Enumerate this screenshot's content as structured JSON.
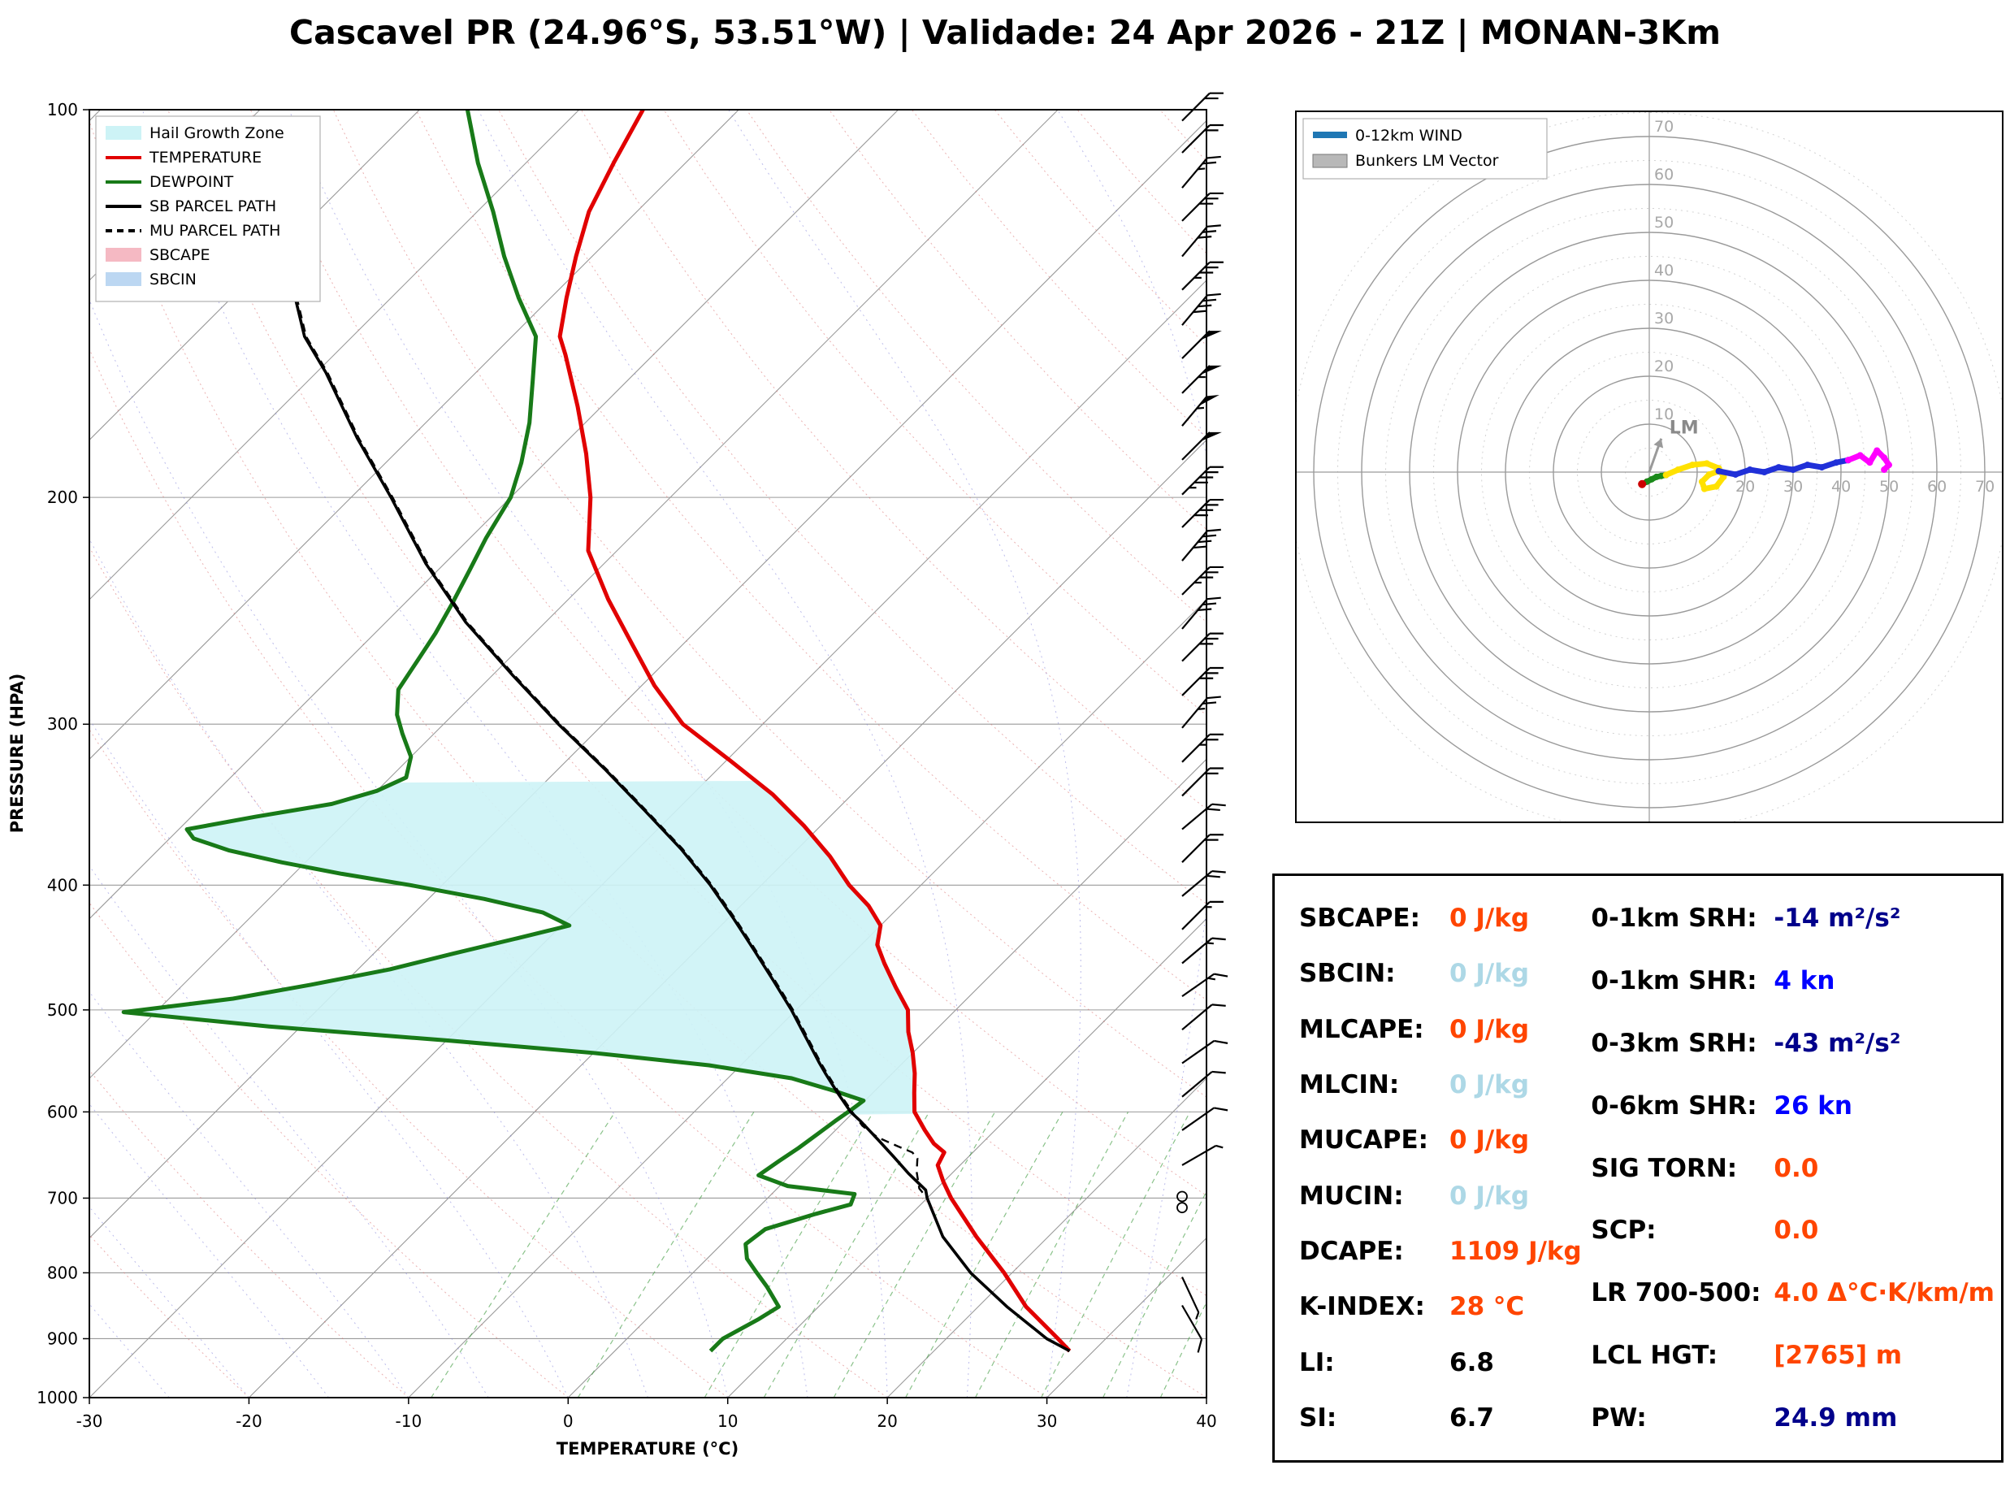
{
  "title": "Cascavel PR (24.96°S, 53.51°W) | Validade: 24 Apr 2026 - 21Z | MONAN-3Km",
  "chart_data": {
    "type": "skewt-sounding",
    "skewt": {
      "xlabel": "TEMPERATURE (°C)",
      "ylabel": "PRESSURE (HPA)",
      "x_ticks": [
        -30,
        -20,
        -10,
        0,
        10,
        20,
        30,
        40
      ],
      "p_ticks": [
        100,
        200,
        300,
        400,
        500,
        600,
        700,
        800,
        900,
        1000
      ],
      "t_range": [
        -30,
        40
      ],
      "p_range": [
        100,
        1000
      ],
      "isotherm_step": 10,
      "dry_adiabats_c": [
        -30,
        -20,
        -10,
        0,
        10,
        20,
        30,
        40,
        50,
        60,
        70,
        80,
        90,
        100,
        110,
        120,
        130,
        140,
        150,
        160,
        170
      ],
      "moist_adiabats_c": [
        -55,
        -50,
        -45,
        -40,
        -35,
        -30,
        -25,
        -20,
        -15,
        -10,
        -5,
        0,
        5,
        10,
        15,
        20,
        25,
        30,
        35,
        40,
        45
      ],
      "mixing_ratios_gkg": [
        2,
        4,
        7,
        9,
        12,
        16,
        21,
        27,
        34,
        42
      ],
      "legend": [
        {
          "label": "Hail Growth Zone",
          "type": "patch",
          "color": "#cdf3f6"
        },
        {
          "label": "TEMPERATURE",
          "type": "line",
          "color": "#e10000"
        },
        {
          "label": "DEWPOINT",
          "type": "line",
          "color": "#187a18"
        },
        {
          "label": "SB PARCEL PATH",
          "type": "line",
          "color": "#000000"
        },
        {
          "label": "MU PARCEL PATH",
          "type": "dashed",
          "color": "#000000"
        },
        {
          "label": "SBCAPE",
          "type": "patch",
          "color": "#f5b9c3"
        },
        {
          "label": "SBCIN",
          "type": "patch",
          "color": "#bcd7f2"
        }
      ]
    },
    "temperature": [
      [
        920,
        28.5
      ],
      [
        900,
        27
      ],
      [
        850,
        23
      ],
      [
        800,
        19.5
      ],
      [
        750,
        15.5
      ],
      [
        700,
        11.5
      ],
      [
        680,
        10
      ],
      [
        660,
        8.6
      ],
      [
        645,
        8.2
      ],
      [
        635,
        7
      ],
      [
        620,
        5.6
      ],
      [
        600,
        3.8
      ],
      [
        580,
        2.6
      ],
      [
        560,
        1.4
      ],
      [
        540,
        0
      ],
      [
        520,
        -1.6
      ],
      [
        500,
        -3
      ],
      [
        480,
        -5.2
      ],
      [
        460,
        -7.4
      ],
      [
        445,
        -9
      ],
      [
        430,
        -10
      ],
      [
        415,
        -12
      ],
      [
        400,
        -14.5
      ],
      [
        380,
        -17.5
      ],
      [
        360,
        -21
      ],
      [
        340,
        -25
      ],
      [
        320,
        -29.8
      ],
      [
        300,
        -35
      ],
      [
        280,
        -39.2
      ],
      [
        260,
        -43.2
      ],
      [
        240,
        -47.5
      ],
      [
        220,
        -51.8
      ],
      [
        200,
        -55
      ],
      [
        185,
        -58
      ],
      [
        170,
        -61.5
      ],
      [
        155,
        -65.5
      ],
      [
        150,
        -67
      ],
      [
        140,
        -69
      ],
      [
        130,
        -71
      ],
      [
        120,
        -73
      ],
      [
        110,
        -74.5
      ],
      [
        100,
        -76
      ]
    ],
    "dewpoint": [
      [
        920,
        6
      ],
      [
        900,
        6
      ],
      [
        870,
        7
      ],
      [
        850,
        7.5
      ],
      [
        820,
        5.5
      ],
      [
        800,
        4
      ],
      [
        780,
        2.5
      ],
      [
        760,
        1.5
      ],
      [
        740,
        1.8
      ],
      [
        720,
        4
      ],
      [
        708,
        5.6
      ],
      [
        695,
        5.2
      ],
      [
        685,
        0.5
      ],
      [
        672,
        -2
      ],
      [
        655,
        -1.6
      ],
      [
        640,
        -1.2
      ],
      [
        625,
        -0.9
      ],
      [
        610,
        -0.6
      ],
      [
        598,
        -0.3
      ],
      [
        588,
        -0.1
      ],
      [
        578,
        -2.5
      ],
      [
        565,
        -6
      ],
      [
        552,
        -12
      ],
      [
        540,
        -20
      ],
      [
        528,
        -30
      ],
      [
        515,
        -42
      ],
      [
        502,
        -52
      ],
      [
        490,
        -46
      ],
      [
        478,
        -42
      ],
      [
        465,
        -38
      ],
      [
        452,
        -35
      ],
      [
        440,
        -32
      ],
      [
        430,
        -29.5
      ],
      [
        420,
        -32
      ],
      [
        410,
        -36.5
      ],
      [
        400,
        -42
      ],
      [
        392,
        -47
      ],
      [
        384,
        -51.5
      ],
      [
        376,
        -55.5
      ],
      [
        368,
        -58.5
      ],
      [
        362,
        -59.5
      ],
      [
        354,
        -56
      ],
      [
        346,
        -52
      ],
      [
        338,
        -50
      ],
      [
        330,
        -49
      ],
      [
        318,
        -50
      ],
      [
        305,
        -52
      ],
      [
        295,
        -53.5
      ],
      [
        282,
        -55
      ],
      [
        268,
        -55.6
      ],
      [
        255,
        -56.2
      ],
      [
        242,
        -57
      ],
      [
        228,
        -58
      ],
      [
        215,
        -59
      ],
      [
        200,
        -60
      ],
      [
        188,
        -61.5
      ],
      [
        175,
        -63.5
      ],
      [
        162,
        -66
      ],
      [
        150,
        -68.5
      ],
      [
        140,
        -72
      ],
      [
        130,
        -75.5
      ],
      [
        120,
        -79
      ],
      [
        110,
        -83
      ],
      [
        100,
        -87
      ]
    ],
    "sb_parcel": [
      [
        920,
        28.5
      ],
      [
        900,
        26.3
      ],
      [
        850,
        21.8
      ],
      [
        800,
        17.4
      ],
      [
        750,
        13.4
      ],
      [
        700,
        10
      ],
      [
        690,
        9.4
      ],
      [
        670,
        7.3
      ],
      [
        650,
        5.3
      ],
      [
        630,
        3.2
      ],
      [
        610,
        1
      ],
      [
        600,
        -0.2
      ],
      [
        580,
        -2.2
      ],
      [
        560,
        -4.2
      ],
      [
        550,
        -5.2
      ],
      [
        520,
        -8.2
      ],
      [
        500,
        -10.3
      ],
      [
        475,
        -13.2
      ],
      [
        450,
        -16.3
      ],
      [
        425,
        -19.6
      ],
      [
        400,
        -23.2
      ],
      [
        375,
        -27.3
      ],
      [
        350,
        -32
      ],
      [
        325,
        -37.1
      ],
      [
        300,
        -42.8
      ],
      [
        275,
        -48.7
      ],
      [
        250,
        -55
      ],
      [
        225,
        -61.2
      ],
      [
        200,
        -67.5
      ],
      [
        180,
        -73.3
      ],
      [
        160,
        -79.4
      ],
      [
        150,
        -83
      ],
      [
        140,
        -86
      ],
      [
        132,
        -88.5
      ]
    ],
    "mu_parcel": [
      [
        920,
        28.5
      ],
      [
        900,
        26.3
      ],
      [
        850,
        21.8
      ],
      [
        800,
        17.4
      ],
      [
        750,
        13.4
      ],
      [
        700,
        10
      ],
      [
        688,
        8.9
      ],
      [
        668,
        7.7
      ],
      [
        652,
        6.9
      ],
      [
        645,
        6.2
      ],
      [
        638,
        4.9
      ],
      [
        628,
        3.1
      ],
      [
        615,
        1.4
      ],
      [
        600,
        -0.1
      ],
      [
        580,
        -2.1
      ],
      [
        560,
        -4.1
      ],
      [
        550,
        -5.1
      ],
      [
        520,
        -8.1
      ],
      [
        500,
        -10.2
      ],
      [
        475,
        -13.1
      ],
      [
        450,
        -16.2
      ],
      [
        425,
        -19.5
      ],
      [
        400,
        -23.1
      ],
      [
        375,
        -27.2
      ],
      [
        350,
        -31.9
      ],
      [
        325,
        -37
      ],
      [
        300,
        -42.7
      ],
      [
        275,
        -48.6
      ],
      [
        250,
        -54.9
      ],
      [
        225,
        -61.1
      ],
      [
        200,
        -67.4
      ],
      [
        180,
        -73.2
      ],
      [
        160,
        -79.3
      ],
      [
        150,
        -82.9
      ],
      [
        140,
        -85.9
      ],
      [
        132,
        -88.4
      ]
    ],
    "hail_zone": {
      "p_top": 332,
      "p_bottom": 603
    },
    "winds": [
      {
        "p": 848,
        "spd": 8,
        "dir": 150
      },
      {
        "p": 806,
        "spd": 5,
        "dir": 155
      },
      {
        "p": 712,
        "spd": 0,
        "dir": 0
      },
      {
        "p": 698,
        "spd": 0,
        "dir": 0
      },
      {
        "p": 660,
        "spd": 5,
        "dir": 60
      },
      {
        "p": 620,
        "spd": 8,
        "dir": 55
      },
      {
        "p": 584,
        "spd": 10,
        "dir": 50
      },
      {
        "p": 550,
        "spd": 10,
        "dir": 55
      },
      {
        "p": 518,
        "spd": 12,
        "dir": 50
      },
      {
        "p": 488,
        "spd": 15,
        "dir": 55
      },
      {
        "p": 460,
        "spd": 15,
        "dir": 50
      },
      {
        "p": 433,
        "spd": 15,
        "dir": 45
      },
      {
        "p": 408,
        "spd": 18,
        "dir": 50
      },
      {
        "p": 384,
        "spd": 20,
        "dir": 45
      },
      {
        "p": 362,
        "spd": 20,
        "dir": 50
      },
      {
        "p": 341,
        "spd": 22,
        "dir": 45
      },
      {
        "p": 321,
        "spd": 25,
        "dir": 45
      },
      {
        "p": 302,
        "spd": 25,
        "dir": 40
      },
      {
        "p": 285,
        "spd": 28,
        "dir": 45
      },
      {
        "p": 268,
        "spd": 30,
        "dir": 45
      },
      {
        "p": 253,
        "spd": 30,
        "dir": 40
      },
      {
        "p": 238,
        "spd": 35,
        "dir": 45
      },
      {
        "p": 224,
        "spd": 38,
        "dir": 40
      },
      {
        "p": 211,
        "spd": 40,
        "dir": 45
      },
      {
        "p": 199,
        "spd": 45,
        "dir": 45
      },
      {
        "p": 187,
        "spd": 50,
        "dir": 45
      },
      {
        "p": 176,
        "spd": 55,
        "dir": 40
      },
      {
        "p": 166,
        "spd": 55,
        "dir": 45
      },
      {
        "p": 156,
        "spd": 50,
        "dir": 45
      },
      {
        "p": 147,
        "spd": 40,
        "dir": 40
      },
      {
        "p": 138,
        "spd": 35,
        "dir": 45
      },
      {
        "p": 130,
        "spd": 30,
        "dir": 40
      },
      {
        "p": 122,
        "spd": 28,
        "dir": 45
      },
      {
        "p": 115,
        "spd": 25,
        "dir": 40
      },
      {
        "p": 108,
        "spd": 22,
        "dir": 45
      },
      {
        "p": 102,
        "spd": 20,
        "dir": 45
      }
    ],
    "hodograph": {
      "ring_interval": 10,
      "ring_max": 70,
      "ring_labels_vertical": [
        10,
        20,
        30,
        40,
        50,
        60,
        70
      ],
      "ring_labels_horizontal": [
        20,
        30,
        40,
        50,
        60,
        70
      ],
      "legend": [
        {
          "label": "0-12km WIND",
          "color": "#1f77b4",
          "type": "line"
        },
        {
          "label": "Bunkers LM Vector",
          "color": "#b8b8b8",
          "type": "patch"
        }
      ],
      "lm_label": "LM",
      "lm_vector": [
        2.5,
        7
      ],
      "start_marker": [
        -1.5,
        -2.5
      ],
      "segments": [
        {
          "color": "#cc0000",
          "points": [
            [
              -1.5,
              -2.5
            ],
            [
              -0.5,
              -2
            ]
          ]
        },
        {
          "color": "#1a8a1a",
          "points": [
            [
              -0.5,
              -2
            ],
            [
              0.5,
              -1.5
            ],
            [
              1.5,
              -1
            ],
            [
              2.5,
              -0.8
            ],
            [
              3.5,
              -0.6
            ]
          ]
        },
        {
          "color": "#ffe100",
          "points": [
            [
              3.5,
              -0.6
            ],
            [
              6,
              0.5
            ],
            [
              9,
              1.5
            ],
            [
              12,
              1.8
            ],
            [
              14.5,
              0.8
            ],
            [
              15.5,
              -1
            ],
            [
              14,
              -3
            ],
            [
              11.5,
              -3.5
            ],
            [
              11,
              -2
            ],
            [
              12.5,
              -0.5
            ],
            [
              14.5,
              0.2
            ]
          ]
        },
        {
          "color": "#2030d8",
          "points": [
            [
              14.5,
              0.2
            ],
            [
              18,
              -0.5
            ],
            [
              21,
              0.5
            ],
            [
              24,
              0
            ],
            [
              27,
              1
            ],
            [
              30,
              0.5
            ],
            [
              33,
              1.5
            ],
            [
              36,
              1
            ],
            [
              39,
              2
            ],
            [
              41.5,
              2.5
            ]
          ]
        },
        {
          "color": "#ff00ff",
          "points": [
            [
              41.5,
              2.5
            ],
            [
              44,
              3.5
            ],
            [
              46,
              2
            ],
            [
              47.5,
              4.5
            ],
            [
              49,
              3
            ],
            [
              50,
              1.5
            ],
            [
              49,
              0.5
            ]
          ]
        }
      ]
    }
  },
  "stats": {
    "left": [
      {
        "label": "SBCAPE:",
        "value": "0 J/kg",
        "color": "#ff4500"
      },
      {
        "label": "SBCIN:",
        "value": "0 J/kg",
        "color": "#add8e6"
      },
      {
        "label": "MLCAPE:",
        "value": "0 J/kg",
        "color": "#ff4500"
      },
      {
        "label": "MLCIN:",
        "value": "0 J/kg",
        "color": "#add8e6"
      },
      {
        "label": "MUCAPE:",
        "value": "0 J/kg",
        "color": "#ff4500"
      },
      {
        "label": "MUCIN:",
        "value": "0 J/kg",
        "color": "#add8e6"
      },
      {
        "label": "DCAPE:",
        "value": "1109 J/kg",
        "color": "#ff4500"
      },
      {
        "label": "K-INDEX:",
        "value": "28 °C",
        "color": "#ff4500"
      },
      {
        "label": "LI:",
        "value": "6.8",
        "color": "#000000"
      },
      {
        "label": "SI:",
        "value": "6.7",
        "color": "#000000"
      }
    ],
    "right": [
      {
        "label": "0-1km SRH:",
        "value": "-14 m²/s²",
        "color": "#00008b"
      },
      {
        "label": "0-1km SHR:",
        "value": "4 kn",
        "color": "#0000ff"
      },
      {
        "label": "0-3km SRH:",
        "value": "-43 m²/s²",
        "color": "#00008b"
      },
      {
        "label": "0-6km SHR:",
        "value": "26 kn",
        "color": "#0000ff"
      },
      {
        "label": "SIG TORN:",
        "value": "0.0",
        "color": "#ff4500"
      },
      {
        "label": "SCP:",
        "value": "0.0",
        "color": "#ff4500"
      },
      {
        "label": "LR 700-500:",
        "value": "4.0 Δ°C·K/km/m",
        "color": "#ff4500"
      },
      {
        "label": "LCL HGT:",
        "value": "[2765] m",
        "color": "#ff4500"
      },
      {
        "label": "PW:",
        "value": "24.9 mm",
        "color": "#00008b"
      }
    ]
  }
}
